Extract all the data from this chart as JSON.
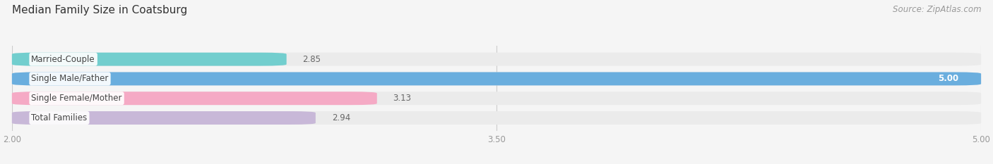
{
  "title": "Median Family Size in Coatsburg",
  "source": "Source: ZipAtlas.com",
  "categories": [
    "Married-Couple",
    "Single Male/Father",
    "Single Female/Mother",
    "Total Families"
  ],
  "values": [
    2.85,
    5.0,
    3.13,
    2.94
  ],
  "bar_colors": [
    "#72cece",
    "#6aaede",
    "#f5aac5",
    "#c8b8d8"
  ],
  "bar_bg_color": "#ebebeb",
  "xlim": [
    2.0,
    5.0
  ],
  "xticks": [
    2.0,
    3.5,
    5.0
  ],
  "xtick_labels": [
    "2.00",
    "3.50",
    "5.00"
  ],
  "bar_height": 0.68,
  "bar_gap": 0.18,
  "label_fontsize": 8.5,
  "title_fontsize": 11,
  "value_fontsize": 8.5,
  "source_fontsize": 8.5,
  "background_color": "#f5f5f5",
  "grid_color": "#cccccc",
  "label_color": "#444444",
  "value_inside_color": "#ffffff",
  "value_outside_color": "#666666",
  "tick_color": "#999999"
}
